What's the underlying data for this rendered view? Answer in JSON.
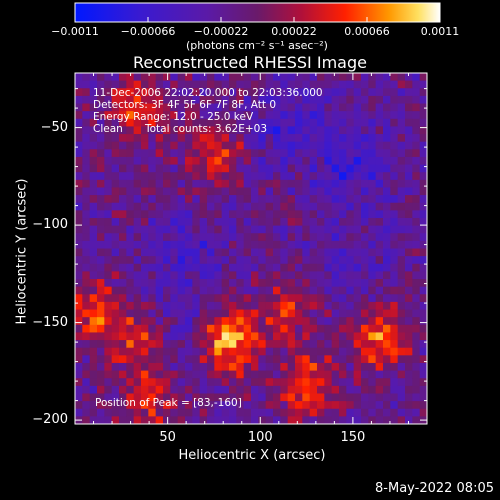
{
  "chart_data": {
    "type": "heatmap",
    "title": "Reconstructed RHESSI Image",
    "xlabel": "Heliocentric X (arcsec)",
    "ylabel": "Heliocentric Y (arcsec)",
    "xlim": [
      0,
      190
    ],
    "ylim": [
      -202,
      -22
    ],
    "x_ticks": [
      50,
      100,
      150
    ],
    "y_ticks": [
      -50,
      -100,
      -150,
      -200
    ],
    "x_tick_labels": [
      "50",
      "100",
      "150"
    ],
    "y_tick_labels": [
      "−50",
      "−100",
      "−150",
      "−200"
    ],
    "colorbar": {
      "min": -0.0011,
      "max": 0.0011,
      "ticks": [
        -0.0011,
        -0.00066,
        -0.00022,
        0.00022,
        0.00066,
        0.0011
      ],
      "tick_labels": [
        "−0.0011",
        "−0.00066",
        "−0.00022",
        "0.00022",
        "0.00066",
        "0.0011"
      ],
      "unit_label": "(photons cm⁻² s⁻¹ asec⁻²)"
    },
    "annotations": {
      "time_range": "11-Dec-2006 22:02:20.000 to 22:03:36.000",
      "detectors": "Detectors: 3F 4F 5F 6F 7F 8F, Att 0",
      "energy": "Energy Range: 12.0 - 25.0 keV",
      "method": "Clean",
      "counts": "Total counts: 3.62E+03",
      "peak": "Position of Peak = [83,-160]"
    },
    "peak": [
      83,
      -160
    ],
    "bright_regions": [
      {
        "x": 83,
        "y": -160,
        "value": 0.0011
      },
      {
        "x": 35,
        "y": -160,
        "value": 0.0007
      },
      {
        "x": 165,
        "y": -158,
        "value": 0.00085
      },
      {
        "x": 125,
        "y": -182,
        "value": 0.0008
      },
      {
        "x": 35,
        "y": -40,
        "value": 0.0007
      },
      {
        "x": 75,
        "y": -60,
        "value": 0.0006
      },
      {
        "x": 10,
        "y": -145,
        "value": 0.0007
      },
      {
        "x": 115,
        "y": -145,
        "value": 0.0005
      },
      {
        "x": 40,
        "y": -190,
        "value": 0.0006
      }
    ],
    "dim_regions": [
      {
        "x": 150,
        "y": -70,
        "value": -0.0006
      },
      {
        "x": 115,
        "y": -50,
        "value": -0.0005
      },
      {
        "x": 60,
        "y": -115,
        "value": -0.0004
      },
      {
        "x": 55,
        "y": -155,
        "value": -0.0003
      },
      {
        "x": 150,
        "y": -120,
        "value": -0.0003
      }
    ]
  },
  "footer": {
    "date": "8-May-2022 08:05"
  }
}
